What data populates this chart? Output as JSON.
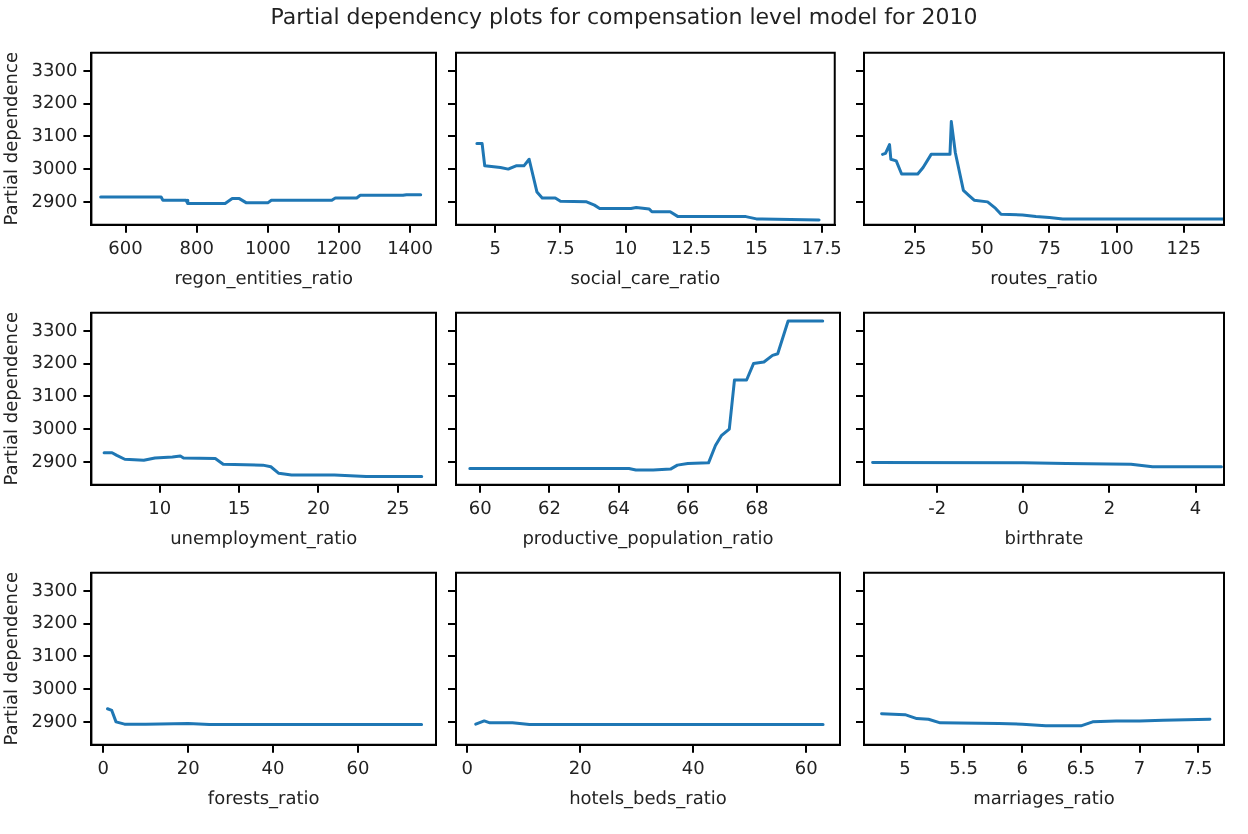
{
  "chart_data": [
    {
      "type": "line",
      "title": "Partial dependency plots for compensation level model for 2010",
      "xlabel": "regon_entities_ratio",
      "ylabel": "Partial dependence",
      "xlim": [
        504,
        1473
      ],
      "xticks": [
        600,
        800,
        1000,
        1200,
        1400
      ],
      "ylim": [
        2830,
        3355
      ],
      "yticks": [
        2900,
        3000,
        3100,
        3200,
        3300
      ],
      "series": [
        {
          "color": "#1f77b4",
          "x": [
            530,
            700,
            705,
            770,
            775,
            880,
            900,
            920,
            940,
            1000,
            1010,
            1180,
            1190,
            1250,
            1260,
            1380,
            1390,
            1430
          ],
          "values": [
            2915,
            2915,
            2905,
            2905,
            2895,
            2895,
            2910,
            2910,
            2897,
            2897,
            2905,
            2905,
            2912,
            2912,
            2920,
            2920,
            2922,
            2922
          ]
        }
      ]
    },
    {
      "type": "line",
      "xlabel": "social_care_ratio",
      "xlim": [
        3.5,
        18
      ],
      "xticks": [
        5,
        7.5,
        10,
        12.5,
        15,
        17.5
      ],
      "ylim": [
        2830,
        3355
      ],
      "yticks": [
        2900,
        3000,
        3100,
        3200,
        3300
      ],
      "tick_labels": "x",
      "series": [
        {
          "color": "#1f77b4",
          "x": [
            4.3,
            4.5,
            4.6,
            5.2,
            5.5,
            5.8,
            6.1,
            6.3,
            6.6,
            6.8,
            7.3,
            7.5,
            8.5,
            8.8,
            9,
            10.2,
            10.4,
            10.9,
            11,
            11.7,
            12,
            14.6,
            15,
            17.4
          ],
          "values": [
            3078,
            3078,
            3010,
            3005,
            3000,
            3010,
            3010,
            3030,
            2930,
            2912,
            2912,
            2902,
            2900,
            2890,
            2880,
            2880,
            2883,
            2878,
            2870,
            2870,
            2855,
            2855,
            2848,
            2845
          ]
        }
      ]
    },
    {
      "type": "line",
      "xlabel": "routes_ratio",
      "xlim": [
        6,
        140
      ],
      "xticks": [
        25,
        50,
        75,
        100,
        125
      ],
      "ylim": [
        2830,
        3355
      ],
      "yticks": [
        2900,
        3000,
        3100,
        3200,
        3300
      ],
      "tick_labels": "x",
      "series": [
        {
          "color": "#1f77b4",
          "x": [
            12.9,
            14,
            15.5,
            16,
            18,
            20,
            26,
            28,
            31,
            38,
            38.5,
            40,
            43,
            45,
            47,
            52,
            55,
            57,
            65,
            70,
            75,
            80,
            140
          ],
          "values": [
            3045,
            3048,
            3075,
            3030,
            3025,
            2985,
            2985,
            3005,
            3045,
            3045,
            3145,
            3050,
            2935,
            2920,
            2905,
            2900,
            2880,
            2862,
            2860,
            2855,
            2852,
            2848,
            2848
          ]
        }
      ]
    },
    {
      "type": "line",
      "xlabel": "unemployment_ratio",
      "ylabel": "Partial dependence",
      "xlim": [
        5.7,
        27.4
      ],
      "xticks": [
        10,
        15,
        20,
        25
      ],
      "ylim": [
        2830,
        3355
      ],
      "yticks": [
        2900,
        3000,
        3100,
        3200,
        3300
      ],
      "series": [
        {
          "color": "#1f77b4",
          "x": [
            6.5,
            7,
            7.3,
            7.8,
            9,
            9.7,
            10.8,
            11.3,
            11.5,
            13.5,
            14,
            16.5,
            17,
            17.5,
            18.3,
            21,
            23,
            26.5
          ],
          "values": [
            2928,
            2928,
            2920,
            2908,
            2905,
            2912,
            2915,
            2918,
            2912,
            2910,
            2893,
            2890,
            2885,
            2865,
            2860,
            2860,
            2855,
            2855
          ]
        }
      ]
    },
    {
      "type": "line",
      "xlabel": "productive_population_ratio",
      "xlim": [
        59.3,
        70.4
      ],
      "xticks": [
        60,
        62,
        64,
        66,
        68
      ],
      "ylim": [
        2830,
        3355
      ],
      "yticks": [
        2900,
        3000,
        3100,
        3200,
        3300
      ],
      "tick_labels": "x",
      "series": [
        {
          "color": "#1f77b4",
          "x": [
            59.7,
            64.3,
            64.5,
            65,
            65.5,
            65.7,
            66,
            66.6,
            66.8,
            66.97,
            67.2,
            67.35,
            67.7,
            67.9,
            68.2,
            68.45,
            68.6,
            68.9,
            69.9
          ],
          "values": [
            2880,
            2880,
            2875,
            2875,
            2878,
            2890,
            2895,
            2897,
            2950,
            2980,
            3000,
            3150,
            3150,
            3200,
            3205,
            3225,
            3230,
            3330,
            3330
          ]
        }
      ]
    },
    {
      "type": "line",
      "xlabel": "birthrate",
      "xlim": [
        -3.7,
        4.66
      ],
      "xticks": [
        -2,
        0,
        2,
        4
      ],
      "ylim": [
        2830,
        3355
      ],
      "yticks": [
        2900,
        3000,
        3100,
        3200,
        3300
      ],
      "tick_labels": "x",
      "series": [
        {
          "color": "#1f77b4",
          "x": [
            -3.5,
            0,
            1,
            2.5,
            3,
            4.6
          ],
          "values": [
            2898,
            2897,
            2895,
            2893,
            2885,
            2885
          ]
        }
      ]
    },
    {
      "type": "line",
      "xlabel": "forests_ratio",
      "ylabel": "Partial dependence",
      "xlim": [
        -2.8,
        78.4
      ],
      "xticks": [
        0,
        20,
        40,
        60
      ],
      "ylim": [
        2830,
        3355
      ],
      "yticks": [
        2900,
        3000,
        3100,
        3200,
        3300
      ],
      "series": [
        {
          "color": "#1f77b4",
          "x": [
            1,
            2,
            3,
            5,
            10,
            20,
            25,
            75
          ],
          "values": [
            2940,
            2935,
            2900,
            2893,
            2893,
            2895,
            2892,
            2892
          ]
        }
      ]
    },
    {
      "type": "line",
      "xlabel": "hotels_beds_ratio",
      "xlim": [
        -2,
        66
      ],
      "xticks": [
        0,
        20,
        40,
        60
      ],
      "ylim": [
        2830,
        3355
      ],
      "yticks": [
        2900,
        3000,
        3100,
        3200,
        3300
      ],
      "tick_labels": "x",
      "series": [
        {
          "color": "#1f77b4",
          "x": [
            1.5,
            3,
            4,
            8,
            11,
            63
          ],
          "values": [
            2893,
            2903,
            2897,
            2897,
            2892,
            2892
          ]
        }
      ]
    },
    {
      "type": "line",
      "xlabel": "marriages_ratio",
      "xlim": [
        4.65,
        7.72
      ],
      "xticks": [
        5,
        5.5,
        6,
        6.5,
        7,
        7.5
      ],
      "ylim": [
        2830,
        3355
      ],
      "yticks": [
        2900,
        3000,
        3100,
        3200,
        3300
      ],
      "tick_labels": "x",
      "series": [
        {
          "color": "#1f77b4",
          "x": [
            4.8,
            5,
            5.1,
            5.2,
            5.3,
            5.8,
            6,
            6.2,
            6.5,
            6.6,
            6.8,
            7,
            7.2,
            7.6
          ],
          "values": [
            2925,
            2922,
            2910,
            2908,
            2897,
            2895,
            2893,
            2888,
            2888,
            2900,
            2903,
            2903,
            2905,
            2908
          ]
        }
      ]
    }
  ]
}
